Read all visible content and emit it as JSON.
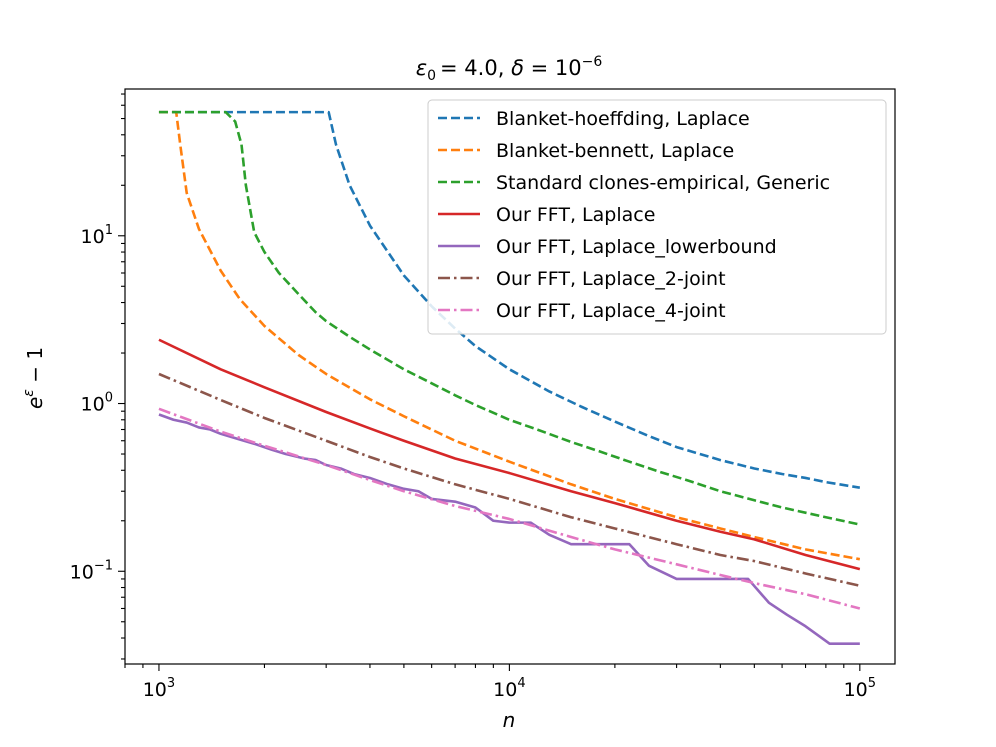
{
  "chart_data": {
    "type": "line",
    "title": "ε₀ = 4.0, δ = 10⁻⁶",
    "title_parts": {
      "eps_label": "ε",
      "eps_sub": "0",
      "eps_val": "= 4.0, ",
      "delta_label": "δ",
      "delta_eq": " = 10",
      "delta_exp": "−6"
    },
    "xlabel": "n",
    "ylabel": "e^ε − 1",
    "ylabel_parts": {
      "base": "e",
      "exp": "ε",
      "rest": " − 1"
    },
    "xscale": "log",
    "yscale": "log",
    "xlim": [
      800,
      126000
    ],
    "ylim": [
      0.028,
      75
    ],
    "x_ticks": [
      {
        "value": 1000,
        "base": "10",
        "exp": "3"
      },
      {
        "value": 10000,
        "base": "10",
        "exp": "4"
      },
      {
        "value": 100000,
        "base": "10",
        "exp": "5"
      }
    ],
    "y_ticks": [
      {
        "value": 0.1,
        "base": "10",
        "exp": "−1"
      },
      {
        "value": 1,
        "base": "10",
        "exp": "0"
      },
      {
        "value": 10,
        "base": "10",
        "exp": "1"
      }
    ],
    "legend_position": "top-right",
    "series": [
      {
        "name": "Blanket-hoeffding, Laplace",
        "color": "#1f77b4",
        "style": "dashed",
        "points": [
          [
            1000,
            54.6
          ],
          [
            1500,
            54.6
          ],
          [
            2000,
            54.6
          ],
          [
            2500,
            54.6
          ],
          [
            3050,
            54.6
          ],
          [
            3200,
            35
          ],
          [
            3500,
            20
          ],
          [
            4000,
            11.5
          ],
          [
            5000,
            5.8
          ],
          [
            6000,
            3.8
          ],
          [
            7000,
            2.8
          ],
          [
            8000,
            2.2
          ],
          [
            10000,
            1.6
          ],
          [
            13000,
            1.18
          ],
          [
            16000,
            0.96
          ],
          [
            20000,
            0.78
          ],
          [
            25000,
            0.64
          ],
          [
            30000,
            0.55
          ],
          [
            40000,
            0.46
          ],
          [
            50000,
            0.41
          ],
          [
            60000,
            0.38
          ],
          [
            70000,
            0.36
          ],
          [
            80000,
            0.34
          ],
          [
            100000,
            0.315
          ]
        ]
      },
      {
        "name": "Blanket-bennett, Laplace",
        "color": "#ff7f0e",
        "style": "dashed",
        "points": [
          [
            1000,
            54.6
          ],
          [
            1120,
            54.6
          ],
          [
            1150,
            35
          ],
          [
            1200,
            18
          ],
          [
            1300,
            11
          ],
          [
            1500,
            6.2
          ],
          [
            1700,
            4.2
          ],
          [
            2000,
            2.9
          ],
          [
            2500,
            1.95
          ],
          [
            3000,
            1.5
          ],
          [
            4000,
            1.06
          ],
          [
            5000,
            0.84
          ],
          [
            7000,
            0.6
          ],
          [
            10000,
            0.45
          ],
          [
            15000,
            0.33
          ],
          [
            20000,
            0.27
          ],
          [
            30000,
            0.21
          ],
          [
            40000,
            0.18
          ],
          [
            50000,
            0.16
          ],
          [
            70000,
            0.135
          ],
          [
            100000,
            0.118
          ]
        ]
      },
      {
        "name": "Standard clones-empirical, Generic",
        "color": "#2ca02c",
        "style": "dashed",
        "points": [
          [
            1000,
            54.6
          ],
          [
            1550,
            54.6
          ],
          [
            1650,
            48
          ],
          [
            1720,
            35
          ],
          [
            1770,
            20
          ],
          [
            1870,
            10.5
          ],
          [
            2000,
            8
          ],
          [
            2200,
            6
          ],
          [
            2500,
            4.5
          ],
          [
            2800,
            3.5
          ],
          [
            3000,
            3.1
          ],
          [
            3500,
            2.5
          ],
          [
            4000,
            2.1
          ],
          [
            5000,
            1.6
          ],
          [
            6000,
            1.32
          ],
          [
            7000,
            1.12
          ],
          [
            8000,
            0.98
          ],
          [
            10000,
            0.8
          ],
          [
            12000,
            0.7
          ],
          [
            15000,
            0.59
          ],
          [
            18000,
            0.52
          ],
          [
            22000,
            0.45
          ],
          [
            27000,
            0.39
          ],
          [
            32000,
            0.35
          ],
          [
            40000,
            0.3
          ],
          [
            50000,
            0.265
          ],
          [
            60000,
            0.24
          ],
          [
            80000,
            0.21
          ],
          [
            100000,
            0.19
          ]
        ]
      },
      {
        "name": "Our FFT, Laplace",
        "color": "#d62728",
        "style": "solid",
        "points": [
          [
            1000,
            2.4
          ],
          [
            1500,
            1.6
          ],
          [
            2000,
            1.25
          ],
          [
            3000,
            0.89
          ],
          [
            4000,
            0.71
          ],
          [
            5000,
            0.6
          ],
          [
            7000,
            0.47
          ],
          [
            10000,
            0.385
          ],
          [
            15000,
            0.3
          ],
          [
            20000,
            0.255
          ],
          [
            30000,
            0.2
          ],
          [
            40000,
            0.172
          ],
          [
            50000,
            0.155
          ],
          [
            70000,
            0.125
          ],
          [
            100000,
            0.103
          ]
        ]
      },
      {
        "name": "Our FFT, Laplace_lowerbound",
        "color": "#9467bd",
        "style": "solid",
        "points": [
          [
            1000,
            0.86
          ],
          [
            1100,
            0.8
          ],
          [
            1200,
            0.77
          ],
          [
            1300,
            0.72
          ],
          [
            1400,
            0.7
          ],
          [
            1500,
            0.66
          ],
          [
            1700,
            0.61
          ],
          [
            1900,
            0.57
          ],
          [
            2100,
            0.53
          ],
          [
            2300,
            0.5
          ],
          [
            2600,
            0.47
          ],
          [
            2800,
            0.46
          ],
          [
            3000,
            0.43
          ],
          [
            3300,
            0.41
          ],
          [
            3600,
            0.38
          ],
          [
            4000,
            0.36
          ],
          [
            4500,
            0.33
          ],
          [
            5000,
            0.31
          ],
          [
            5500,
            0.3
          ],
          [
            6000,
            0.27
          ],
          [
            7000,
            0.26
          ],
          [
            8000,
            0.24
          ],
          [
            9000,
            0.2
          ],
          [
            10000,
            0.195
          ],
          [
            11500,
            0.195
          ],
          [
            13000,
            0.165
          ],
          [
            15000,
            0.145
          ],
          [
            20000,
            0.145
          ],
          [
            22000,
            0.145
          ],
          [
            25000,
            0.108
          ],
          [
            30000,
            0.09
          ],
          [
            35000,
            0.09
          ],
          [
            45000,
            0.09
          ],
          [
            48000,
            0.09
          ],
          [
            55000,
            0.065
          ],
          [
            62000,
            0.055
          ],
          [
            70000,
            0.047
          ],
          [
            82000,
            0.037
          ],
          [
            100000,
            0.037
          ]
        ]
      },
      {
        "name": "Our FFT, Laplace_2-joint",
        "color": "#8c564b",
        "style": "dashdot",
        "points": [
          [
            1000,
            1.5
          ],
          [
            1500,
            1.05
          ],
          [
            2000,
            0.82
          ],
          [
            3000,
            0.6
          ],
          [
            4000,
            0.48
          ],
          [
            5000,
            0.41
          ],
          [
            7000,
            0.33
          ],
          [
            10000,
            0.27
          ],
          [
            15000,
            0.21
          ],
          [
            20000,
            0.18
          ],
          [
            30000,
            0.145
          ],
          [
            40000,
            0.125
          ],
          [
            50000,
            0.115
          ],
          [
            70000,
            0.097
          ],
          [
            100000,
            0.082
          ]
        ]
      },
      {
        "name": "Our FFT, Laplace_4-joint",
        "color": "#e377c2",
        "style": "dashdot",
        "points": [
          [
            1000,
            0.93
          ],
          [
            1500,
            0.68
          ],
          [
            2000,
            0.56
          ],
          [
            3000,
            0.43
          ],
          [
            4000,
            0.35
          ],
          [
            5000,
            0.3
          ],
          [
            7000,
            0.245
          ],
          [
            10000,
            0.205
          ],
          [
            15000,
            0.16
          ],
          [
            20000,
            0.135
          ],
          [
            30000,
            0.11
          ],
          [
            40000,
            0.095
          ],
          [
            50000,
            0.085
          ],
          [
            70000,
            0.073
          ],
          [
            100000,
            0.06
          ]
        ]
      }
    ]
  }
}
